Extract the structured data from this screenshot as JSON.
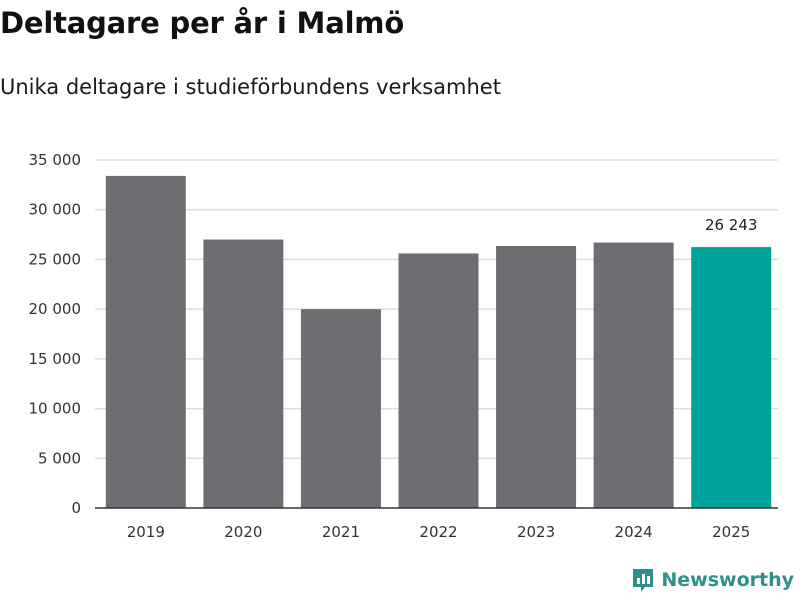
{
  "chart_data": {
    "type": "bar",
    "title": "Deltagare per år i Malmö",
    "subtitle": "Unika deltagare i studieförbundens verksamhet",
    "xlabel": "",
    "ylabel": "",
    "categories": [
      "2019",
      "2020",
      "2021",
      "2022",
      "2023",
      "2024",
      "2025"
    ],
    "values": [
      33400,
      27000,
      20000,
      25600,
      26350,
      26700,
      26243
    ],
    "highlight_index": 6,
    "data_labels": [
      {
        "index": 6,
        "text": "26 243"
      }
    ],
    "ylim": [
      0,
      35000
    ],
    "yticks": [
      0,
      5000,
      10000,
      15000,
      20000,
      25000,
      30000,
      35000
    ],
    "ytick_labels": [
      "0",
      "5 000",
      "10 000",
      "15 000",
      "20 000",
      "25 000",
      "30 000",
      "35 000"
    ],
    "grid": true,
    "colors": {
      "bar": "#6e6d72",
      "highlight": "#00a39a",
      "grid": "#dddddd",
      "axis": "#333333"
    }
  },
  "branding": {
    "name": "Newsworthy",
    "icon": "newsworthy-logo-icon",
    "color": "#2f8f8a"
  }
}
